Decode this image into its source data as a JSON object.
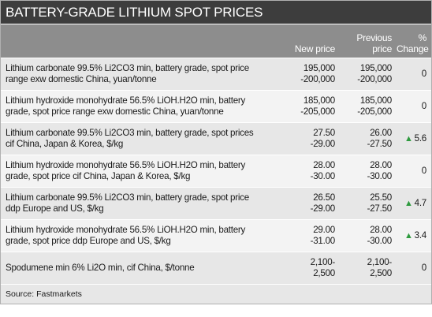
{
  "title": "BATTERY-GRADE LITHIUM SPOT PRICES",
  "columns": [
    [],
    [
      "New price"
    ],
    [
      "Previous",
      "price"
    ],
    [
      "%",
      "Change"
    ]
  ],
  "rows": [
    {
      "description": [
        "Lithium carbonate 99.5% Li2CO3 min, battery grade, spot price",
        "range exw domestic China, yuan/tonne"
      ],
      "new_price": [
        "195,000",
        "-200,000"
      ],
      "previous_price": [
        "195,000",
        "-200,000"
      ],
      "change": 0
    },
    {
      "description": [
        "Lithium hydroxide monohydrate 56.5% LiOH.H2O min, battery",
        "grade, spot price range exw domestic China, yuan/tonne"
      ],
      "new_price": [
        "185,000",
        "-205,000"
      ],
      "previous_price": [
        "185,000",
        "-205,000"
      ],
      "change": 0
    },
    {
      "description": [
        "Lithium carbonate 99.5% Li2CO3 min, battery grade, spot prices",
        "cif China, Japan & Korea, $/kg"
      ],
      "new_price": [
        "27.50",
        "-29.00"
      ],
      "previous_price": [
        "26.00",
        "-27.50"
      ],
      "change": 5.6
    },
    {
      "description": [
        "Lithium hydroxide monohydrate 56.5% LiOH.H2O min, battery",
        "grade, spot price cif China, Japan & Korea, $/kg"
      ],
      "new_price": [
        "28.00",
        "-30.00"
      ],
      "previous_price": [
        "28.00",
        "-30.00"
      ],
      "change": 0
    },
    {
      "description": [
        "Lithium carbonate 99.5% Li2CO3 min, battery grade, spot price",
        "ddp Europe and US, $/kg"
      ],
      "new_price": [
        "26.50",
        "-29.00"
      ],
      "previous_price": [
        "25.50",
        "-27.50"
      ],
      "change": 4.7
    },
    {
      "description": [
        "Lithium hydroxide monohydrate 56.5% LiOH.H2O min, battery",
        "grade, spot price ddp Europe and US, $/kg"
      ],
      "new_price": [
        "29.00",
        "-31.00"
      ],
      "previous_price": [
        "28.00",
        "-30.00"
      ],
      "change": 3.4
    },
    {
      "description": [
        "Spodumene min 6% Li2O min, cif China, $/tonne"
      ],
      "new_price": [
        "2,100-",
        "2,500"
      ],
      "previous_price": [
        "2,100-",
        "2,500"
      ],
      "change": 0
    }
  ],
  "source": "Source: Fastmarkets"
}
